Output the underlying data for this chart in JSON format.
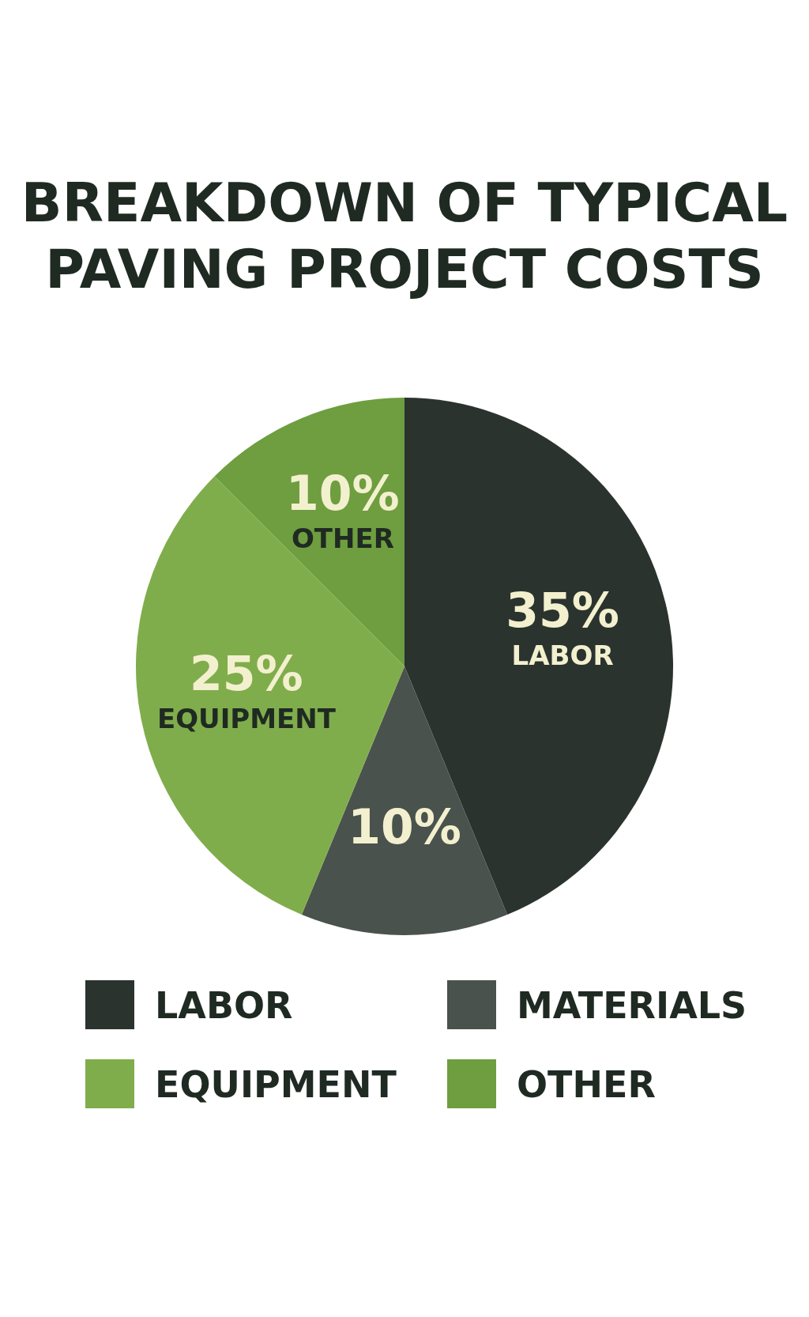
{
  "chart_data": {
    "type": "pie",
    "title": "BREAKDOWN OF TYPICAL PAVING PROJECT COSTS",
    "categories": [
      "LABOR",
      "MATERIALS",
      "EQUIPMENT",
      "OTHER"
    ],
    "values": [
      35,
      10,
      25,
      10
    ],
    "colors": [
      "#2b332f",
      "#4a524d",
      "#80ad4b",
      "#6e9e3f"
    ],
    "value_labels": [
      "35%",
      "10%",
      "25%",
      "10%"
    ],
    "annotations": [
      {
        "text": "LABOR",
        "x": "LABOR"
      },
      {
        "text": "EQUIPMENT",
        "x": "EQUIPMENT"
      },
      {
        "text": "OTHER",
        "x": "OTHER"
      }
    ],
    "legend": "bottom"
  }
}
